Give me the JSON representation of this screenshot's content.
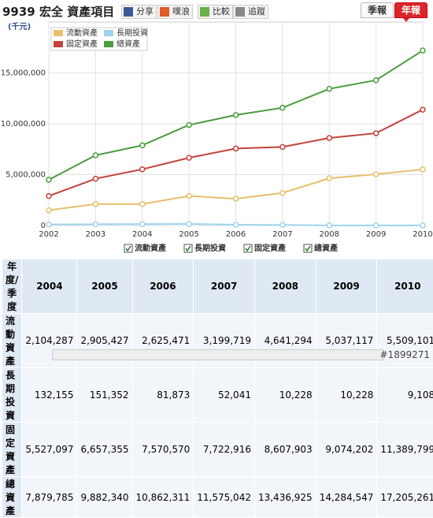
{
  "header": {
    "title": "9939 宏全 資產項目",
    "buttons": [
      "分享",
      "噗浪",
      "比較",
      "追蹤"
    ],
    "tabs": [
      "季報",
      "年報"
    ]
  },
  "chart_data": {
    "type": "line",
    "y_label": "(千元)",
    "x": [
      2002,
      2003,
      2004,
      2005,
      2006,
      2007,
      2008,
      2009,
      2010
    ],
    "xlim": [
      2002,
      2010
    ],
    "xticks": [
      2002,
      2003,
      2004,
      2005,
      2006,
      2007,
      2008,
      2009,
      2010
    ],
    "ylim": [
      0,
      20000000
    ],
    "yticks": [
      0,
      {
        "value": 5000000,
        "label": "5,000,000"
      },
      {
        "value": 10000000,
        "label": "10,000,000"
      },
      {
        "value": 15000000,
        "label": "15,000,000"
      }
    ],
    "grid": true,
    "series": [
      {
        "name": "流動資產",
        "color": "#e6c06a",
        "values": [
          1500000,
          2100000,
          2104287,
          2905427,
          2625471,
          3199719,
          4641294,
          5037117,
          5509101
        ]
      },
      {
        "name": "長期投資",
        "color": "#9fd3ee",
        "values": [
          100000,
          120000,
          132155,
          151352,
          81873,
          52041,
          10228,
          10228,
          9108
        ]
      },
      {
        "name": "固定資產",
        "color": "#c4413c",
        "values": [
          2900000,
          4600000,
          5527097,
          6657355,
          7570570,
          7722916,
          8607903,
          9074202,
          11389799
        ]
      },
      {
        "name": "總資產",
        "color": "#4b9c40",
        "values": [
          4500000,
          6900000,
          7879785,
          9882340,
          10862311,
          11575042,
          13436925,
          14284547,
          17205261
        ]
      }
    ]
  },
  "table": {
    "header": [
      "年度/季度",
      "2004",
      "2005",
      "2006",
      "2007",
      "2008",
      "2009",
      "2010"
    ],
    "rows": [
      [
        "流動資產",
        "2,104,287",
        "2,905,427",
        "2,625,471",
        "3,199,719",
        "4,641,294",
        "5,037,117",
        "5,509,101"
      ],
      [
        "長期投資",
        "132,155",
        "151,352",
        "81,873",
        "52,041",
        "10,228",
        "10,228",
        "9,108"
      ],
      [
        "固定資產",
        "5,527,097",
        "6,657,355",
        "7,570,570",
        "7,722,916",
        "8,607,903",
        "9,074,202",
        "11,389,799"
      ],
      [
        "總資產",
        "7,879,785",
        "9,882,340",
        "10,862,311",
        "11,575,042",
        "13,436,925",
        "14,284,547",
        "17,205,261"
      ]
    ]
  },
  "watermark": "#1899271"
}
